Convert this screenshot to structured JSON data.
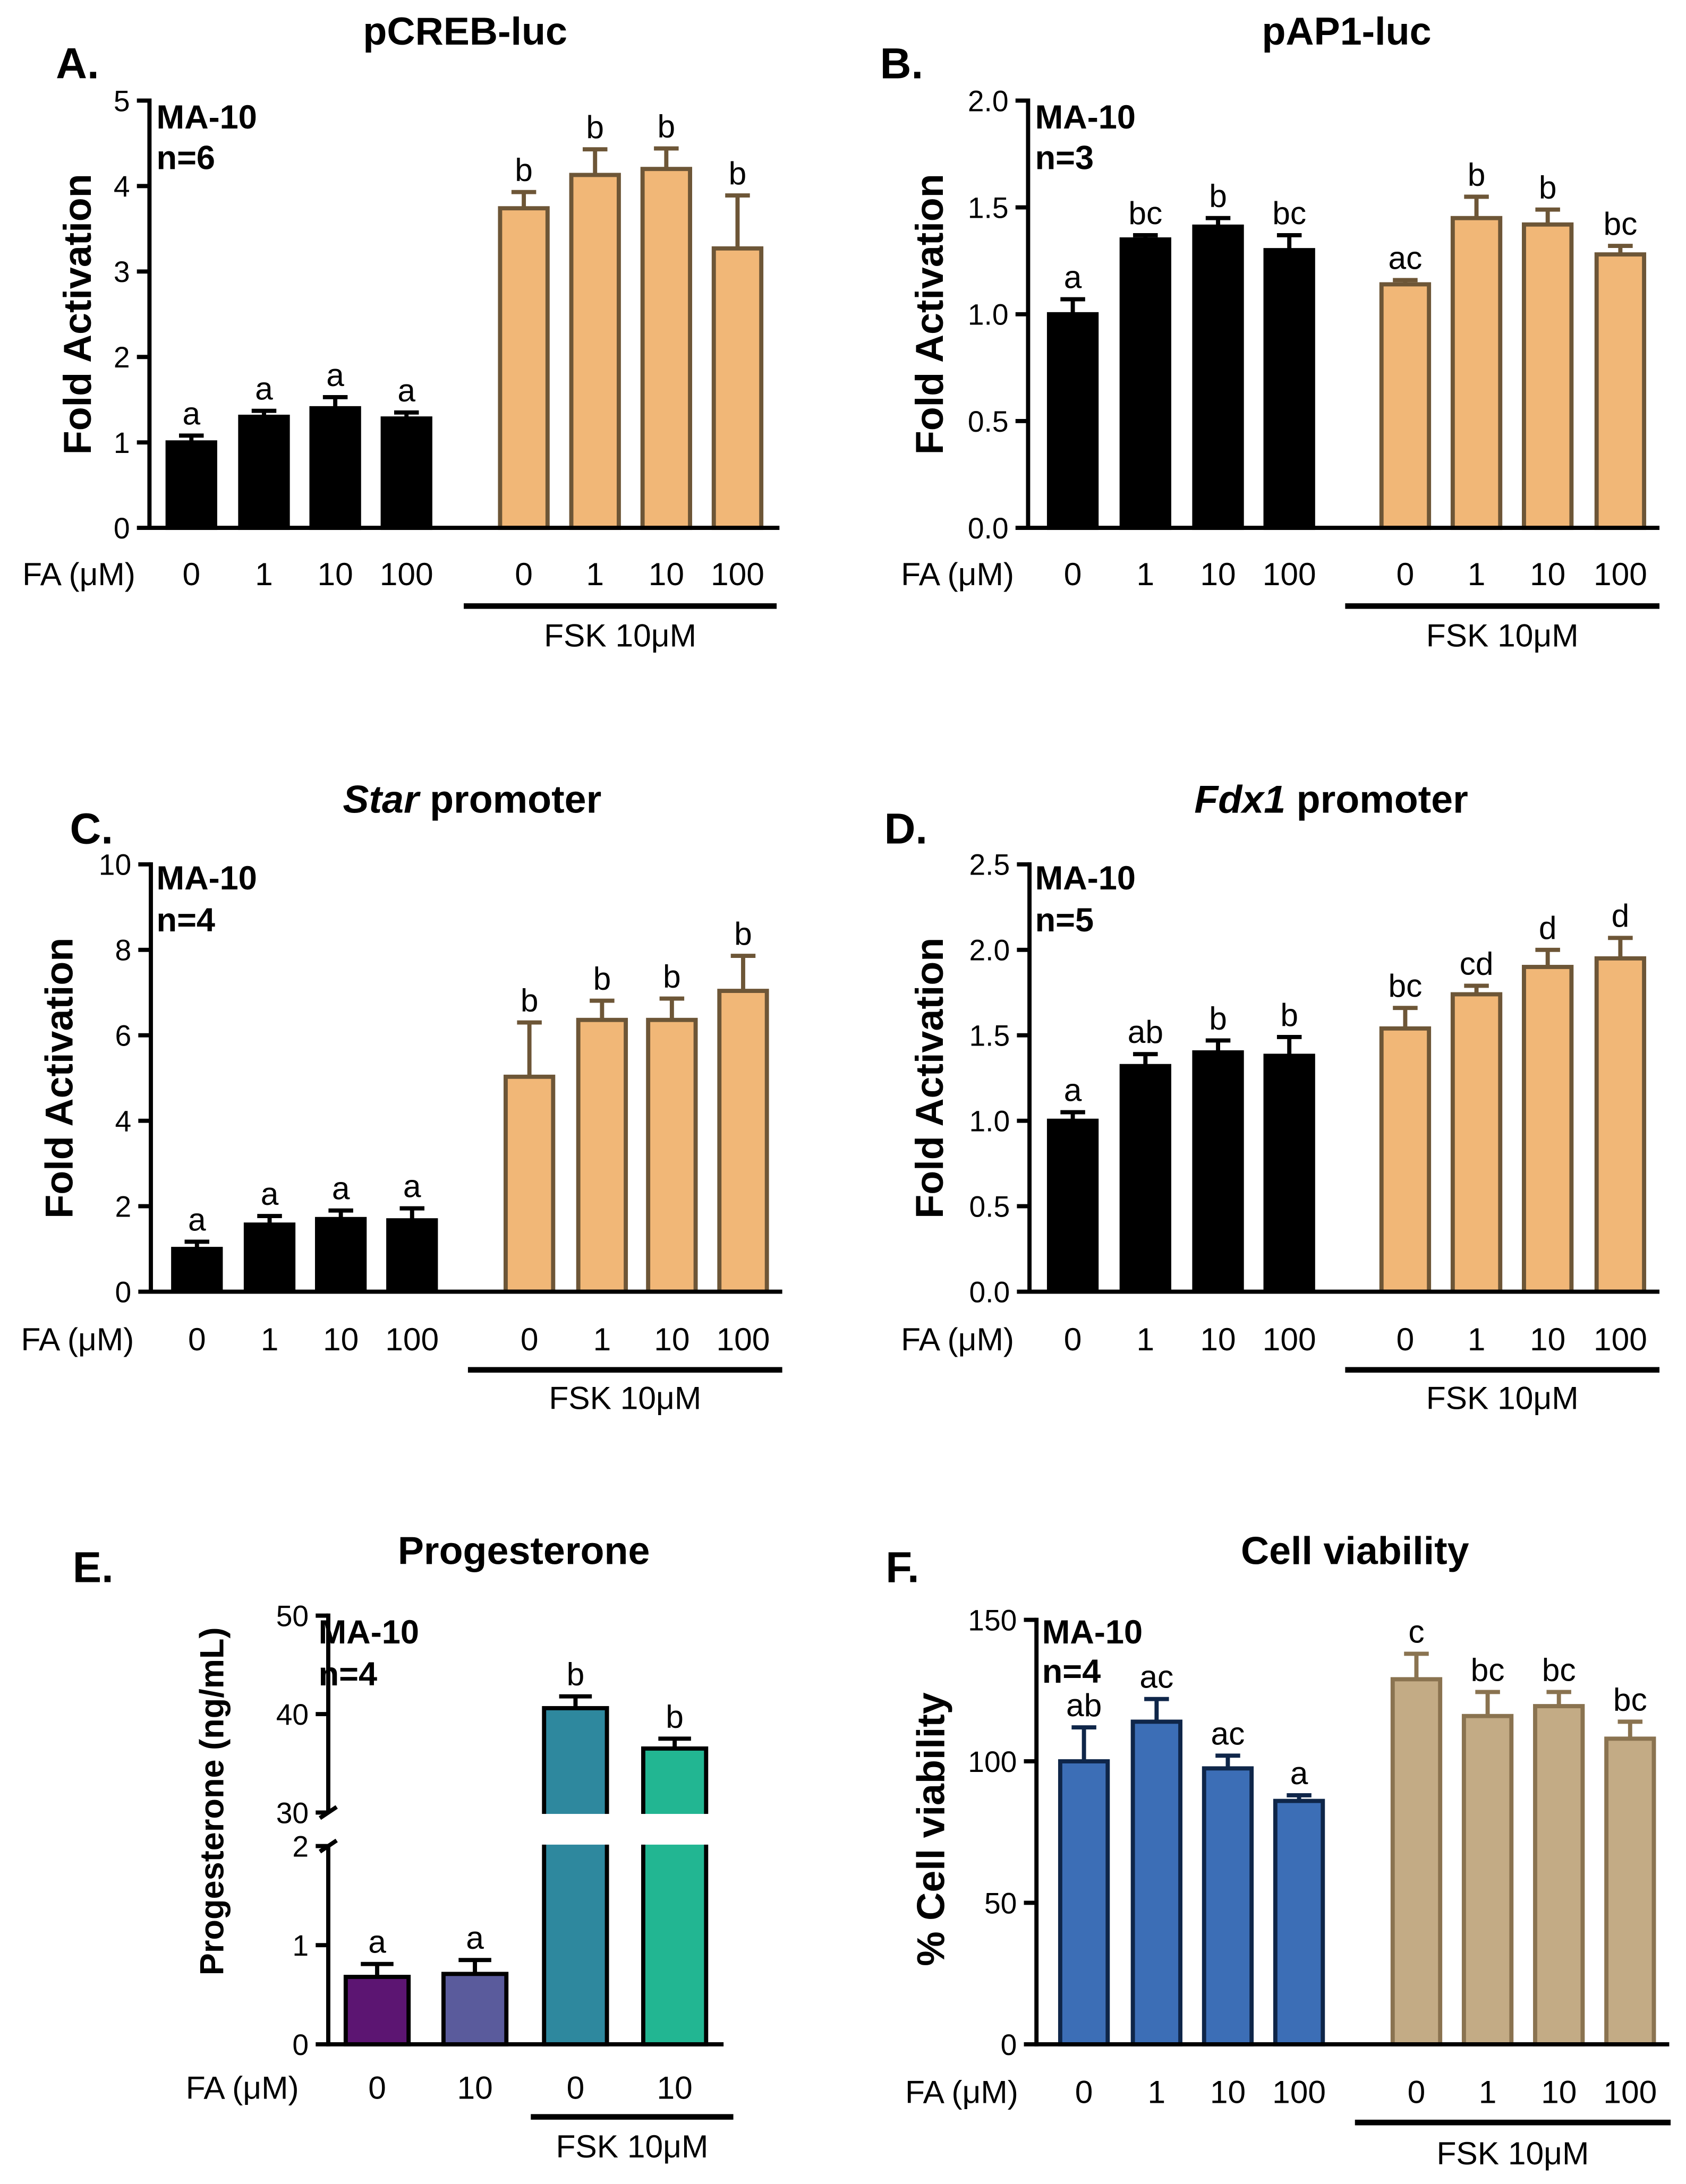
{
  "chart_data": [
    {
      "panel_label": "A.",
      "type": "bar",
      "title": [
        {
          "text": "pCREB-luc",
          "italic": false
        }
      ],
      "cell_line": "MA-10",
      "sample_size": "n=6",
      "ylabel": "Fold Activation",
      "ylim": [
        0,
        5
      ],
      "yticks": [
        0,
        1,
        2,
        3,
        4,
        5
      ],
      "ytick_labels": [
        "0",
        "1",
        "2",
        "3",
        "4",
        "5"
      ],
      "xlabel": "FA (μM)",
      "categories": [
        "0",
        "1",
        "10",
        "100",
        "0",
        "1",
        "10",
        "100"
      ],
      "values": [
        1.0,
        1.3,
        1.4,
        1.28,
        3.74,
        4.13,
        4.2,
        3.27
      ],
      "errors": [
        0.08,
        0.07,
        0.13,
        0.07,
        0.19,
        0.3,
        0.24,
        0.62
      ],
      "significance": [
        "a",
        "a",
        "a",
        "a",
        "b",
        "b",
        "b",
        "b"
      ],
      "bar_colors": [
        "#000000",
        "#000000",
        "#000000",
        "#000000",
        "#F1B777",
        "#F1B777",
        "#F1B777",
        "#F1B777"
      ],
      "edge_colors": [
        "#000000",
        "#000000",
        "#000000",
        "#000000",
        "#6D5637",
        "#6D5637",
        "#6D5637",
        "#6D5637"
      ],
      "group": {
        "label": "FSK 10μM",
        "first_index": 4,
        "last_index": 7
      }
    },
    {
      "panel_label": "B.",
      "type": "bar",
      "title": [
        {
          "text": "pAP1-luc",
          "italic": false
        }
      ],
      "cell_line": "MA-10",
      "sample_size": "n=3",
      "ylabel": "Fold Activation",
      "ylim": [
        0,
        2
      ],
      "yticks": [
        0,
        0.5,
        1,
        1.5,
        2
      ],
      "ytick_labels": [
        "0.0",
        "0.5",
        "1.0",
        "1.5",
        "2.0"
      ],
      "xlabel": "FA (μM)",
      "categories": [
        "0",
        "1",
        "10",
        "100",
        "0",
        "1",
        "10",
        "100"
      ],
      "values": [
        1.0,
        1.35,
        1.41,
        1.3,
        1.14,
        1.45,
        1.42,
        1.28
      ],
      "errors": [
        0.07,
        0.02,
        0.04,
        0.07,
        0.02,
        0.1,
        0.07,
        0.04
      ],
      "significance": [
        "a",
        "bc",
        "b",
        "bc",
        "ac",
        "b",
        "b",
        "bc"
      ],
      "bar_colors": [
        "#000000",
        "#000000",
        "#000000",
        "#000000",
        "#F1B777",
        "#F1B777",
        "#F1B777",
        "#F1B777"
      ],
      "edge_colors": [
        "#000000",
        "#000000",
        "#000000",
        "#000000",
        "#6D5637",
        "#6D5637",
        "#6D5637",
        "#6D5637"
      ],
      "group": {
        "label": "FSK 10μM",
        "first_index": 4,
        "last_index": 7
      }
    },
    {
      "panel_label": "C.",
      "type": "bar",
      "title": [
        {
          "text": "Star",
          "italic": true
        },
        {
          "text": " promoter",
          "italic": false
        }
      ],
      "cell_line": "MA-10",
      "sample_size": "n=4",
      "ylabel": "Fold Activation",
      "ylim": [
        0,
        10
      ],
      "yticks": [
        0,
        2,
        4,
        6,
        8,
        10
      ],
      "ytick_labels": [
        "0",
        "2",
        "4",
        "6",
        "8",
        "10"
      ],
      "xlabel": "FA (μM)",
      "categories": [
        "0",
        "1",
        "10",
        "100",
        "0",
        "1",
        "10",
        "100"
      ],
      "values": [
        1.0,
        1.57,
        1.7,
        1.67,
        5.03,
        6.36,
        6.36,
        7.04
      ],
      "errors": [
        0.17,
        0.2,
        0.2,
        0.28,
        1.27,
        0.45,
        0.5,
        0.82
      ],
      "significance": [
        "a",
        "a",
        "a",
        "a",
        "b",
        "b",
        "b",
        "b"
      ],
      "bar_colors": [
        "#000000",
        "#000000",
        "#000000",
        "#000000",
        "#F1B777",
        "#F1B777",
        "#F1B777",
        "#F1B777"
      ],
      "edge_colors": [
        "#000000",
        "#000000",
        "#000000",
        "#000000",
        "#6D5637",
        "#6D5637",
        "#6D5637",
        "#6D5637"
      ],
      "group": {
        "label": "FSK 10μM",
        "first_index": 4,
        "last_index": 7
      }
    },
    {
      "panel_label": "D.",
      "type": "bar",
      "title": [
        {
          "text": "Fdx1",
          "italic": true
        },
        {
          "text": " promoter",
          "italic": false
        }
      ],
      "cell_line": "MA-10",
      "sample_size": "n=5",
      "ylabel": "Fold Activation",
      "ylim": [
        0,
        2.5
      ],
      "yticks": [
        0,
        0.5,
        1,
        1.5,
        2,
        2.5
      ],
      "ytick_labels": [
        "0.0",
        "0.5",
        "1.0",
        "1.5",
        "2.0",
        "2.5"
      ],
      "xlabel": "FA (μM)",
      "categories": [
        "0",
        "1",
        "10",
        "100",
        "0",
        "1",
        "10",
        "100"
      ],
      "values": [
        1.0,
        1.32,
        1.4,
        1.38,
        1.54,
        1.74,
        1.9,
        1.95
      ],
      "errors": [
        0.05,
        0.07,
        0.07,
        0.11,
        0.12,
        0.05,
        0.1,
        0.12
      ],
      "significance": [
        "a",
        "ab",
        "b",
        "b",
        "bc",
        "cd",
        "d",
        "d"
      ],
      "bar_colors": [
        "#000000",
        "#000000",
        "#000000",
        "#000000",
        "#F1B777",
        "#F1B777",
        "#F1B777",
        "#F1B777"
      ],
      "edge_colors": [
        "#000000",
        "#000000",
        "#000000",
        "#000000",
        "#6D5637",
        "#6D5637",
        "#6D5637",
        "#6D5637"
      ],
      "group": {
        "label": "FSK 10μM",
        "first_index": 4,
        "last_index": 7
      }
    },
    {
      "panel_label": "E.",
      "type": "bar",
      "title": [
        {
          "text": "Progesterone",
          "italic": false
        }
      ],
      "cell_line": "MA-10",
      "sample_size": "n=4",
      "ylabel": "Progesterone (ng/mL)",
      "axis_break": true,
      "ylim_lower": [
        0,
        2
      ],
      "yticks_lower": [
        0,
        1,
        2
      ],
      "ytick_labels_lower": [
        "0",
        "1",
        "2"
      ],
      "ylim_upper": [
        30,
        50
      ],
      "yticks_upper": [
        30,
        40,
        50
      ],
      "ytick_labels_upper": [
        "30",
        "40",
        "50"
      ],
      "xlabel": "FA (μM)",
      "categories": [
        "0",
        "10",
        "0",
        "10"
      ],
      "values": [
        0.68,
        0.71,
        40.6,
        36.5
      ],
      "errors": [
        0.13,
        0.14,
        1.2,
        1.0
      ],
      "significance": [
        "a",
        "a",
        "b",
        "b"
      ],
      "bar_colors": [
        "#5C1572",
        "#5A5B9C",
        "#2E889E",
        "#22B692"
      ],
      "edge_colors": [
        "#000000",
        "#000000",
        "#000000",
        "#000000"
      ],
      "group": {
        "label": "FSK 10μM",
        "first_index": 2,
        "last_index": 3
      }
    },
    {
      "panel_label": "F.",
      "type": "bar",
      "title": [
        {
          "text": "Cell viability",
          "italic": false
        }
      ],
      "cell_line": "MA-10",
      "sample_size": "n=4",
      "ylabel": "% Cell viability",
      "ylim": [
        0,
        150
      ],
      "yticks": [
        0,
        50,
        100,
        150
      ],
      "ytick_labels": [
        "0",
        "50",
        "100",
        "150"
      ],
      "xlabel": "FA (μM)",
      "categories": [
        "0",
        "1",
        "10",
        "100",
        "0",
        "1",
        "10",
        "100"
      ],
      "values": [
        100,
        114,
        97.5,
        86,
        129,
        116,
        119.5,
        108
      ],
      "errors": [
        12,
        8,
        4.5,
        2,
        9,
        8.5,
        5,
        6
      ],
      "significance": [
        "ab",
        "ac",
        "ac",
        "a",
        "c",
        "bc",
        "bc",
        "bc"
      ],
      "bar_colors": [
        "#3C6EB6",
        "#3C6EB6",
        "#3C6EB6",
        "#3C6EB6",
        "#C3AB85",
        "#C3AB85",
        "#C3AB85",
        "#C3AB85"
      ],
      "edge_colors": [
        "#0F2649",
        "#0F2649",
        "#0F2649",
        "#0F2649",
        "#8A7350",
        "#8A7350",
        "#8A7350",
        "#8A7350"
      ],
      "group": {
        "label": "FSK 10μM",
        "first_index": 4,
        "last_index": 7
      }
    }
  ]
}
